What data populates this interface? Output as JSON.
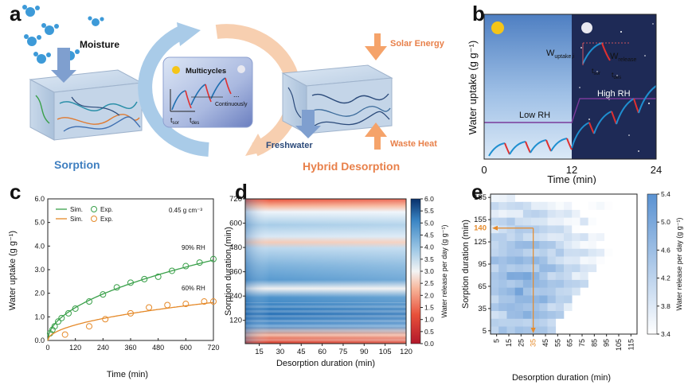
{
  "panels": {
    "a": "a",
    "b": "b",
    "c": "c",
    "d": "d",
    "e": "e"
  },
  "panel_a": {
    "moisture": "Moisture",
    "sorption": "Sorption",
    "hybrid_desorption": "Hybrid Desorption",
    "solar_energy": "Solar Energy",
    "waste_heat": "Waste Heat",
    "freshwater": "Freshwater",
    "multicycles": "Multicycles",
    "continuously": "Continuously",
    "ellipsis": "...",
    "t_sor": "t",
    "t_sor_sub": "sor",
    "t_des": "t",
    "t_des_sub": "des",
    "colors": {
      "sorption": "#3f7fc0",
      "desorption": "#f0955a",
      "arrow_blue": "#6fa8dc",
      "arrow_orange": "#f5b58a"
    }
  },
  "chart_data": [
    {
      "panel": "b",
      "type": "line",
      "title": "",
      "xlabel": "Time (min)",
      "ylabel": "Water uptake (g g⁻¹)",
      "x_ticks": [
        "0",
        "12",
        "24"
      ],
      "xlim": [
        0,
        24
      ],
      "annotations": {
        "low_rh": "Low RH",
        "high_rh": "High RH",
        "w_uptake": "W",
        "w_uptake_sub": "uptake,i",
        "w_release": "W",
        "w_release_sub": "release",
        "t_sor": "t",
        "t_sor_sub": "sor",
        "t_des": "t",
        "t_des_sub": "des"
      },
      "colors": {
        "day": "#4f7fc4",
        "night": "#1e2a56",
        "sorption": "#1f8fd0",
        "desorption": "#e03030",
        "rh_line": "#7a3a9a"
      }
    },
    {
      "panel": "c",
      "type": "scatter",
      "xlabel": "Time (min)",
      "ylabel": "Water uptake (g g⁻¹)",
      "x_ticks": [
        0,
        120,
        240,
        360,
        480,
        600,
        720
      ],
      "y_ticks": [
        "0.0",
        "1.0",
        "2.0",
        "3.0",
        "4.0",
        "5.0",
        "6.0"
      ],
      "xlim": [
        0,
        720
      ],
      "ylim": [
        0,
        6
      ],
      "legend": {
        "sim": "Sim.",
        "exp": "Exp.",
        "density": "0.45 g cm⁻³"
      },
      "series": [
        {
          "name": "90% RH",
          "color": "#3aa04a",
          "exp_x": [
            10,
            20,
            30,
            45,
            60,
            90,
            120,
            180,
            240,
            300,
            360,
            420,
            480,
            540,
            600,
            660,
            720
          ],
          "exp_y": [
            0.3,
            0.45,
            0.6,
            0.8,
            0.95,
            1.15,
            1.35,
            1.65,
            1.95,
            2.25,
            2.45,
            2.6,
            2.7,
            2.95,
            3.15,
            3.3,
            3.45
          ],
          "sim_k": 0.127,
          "sim_n": 0.5
        },
        {
          "name": "60% RH",
          "color": "#e58a2a",
          "exp_x": [
            75,
            180,
            250,
            360,
            440,
            520,
            600,
            680,
            720
          ],
          "exp_y": [
            0.25,
            0.6,
            0.9,
            1.15,
            1.4,
            1.5,
            1.55,
            1.65,
            1.65
          ],
          "sim_k": 0.06,
          "sim_n": 0.5
        }
      ],
      "series_labels": [
        "90% RH",
        "60% RH"
      ]
    },
    {
      "panel": "d",
      "type": "heatmap",
      "xlabel": "Desorption duration (min)",
      "ylabel": "Sorption duration (min)",
      "x_ticks": [
        "15",
        "30",
        "45",
        "60",
        "75",
        "90",
        "105",
        "120"
      ],
      "y_ticks": [
        "120",
        "240",
        "360",
        "480",
        "600",
        "720"
      ],
      "xlim": [
        5,
        120
      ],
      "ylim": [
        5,
        720
      ],
      "colorbar": {
        "label": "Water release per day (g g⁻¹)",
        "ticks": [
          "0.0",
          "0.5",
          "1.0",
          "1.5",
          "2.0",
          "2.5",
          "3.0",
          "3.5",
          "4.0",
          "4.5",
          "5.0",
          "5.5",
          "6.0"
        ],
        "range": [
          0,
          6
        ]
      }
    },
    {
      "panel": "e",
      "type": "heatmap",
      "xlabel": "Desorption duration (min)",
      "ylabel": "Sorption duration (min)",
      "x_ticks": [
        "5",
        "15",
        "25",
        "35",
        "45",
        "55",
        "65",
        "75",
        "85",
        "95",
        "105",
        "115"
      ],
      "y_ticks": [
        "5",
        "35",
        "65",
        "95",
        "125",
        "155",
        "185"
      ],
      "highlight": {
        "x_label": "35",
        "y_label": "140",
        "color": "#e58a2a"
      },
      "colorbar": {
        "label": "Water release per day (g g⁻¹)",
        "ticks": [
          "3.4",
          "3.8",
          "4.2",
          "4.6",
          "5.0",
          "5.4"
        ],
        "range": [
          3.4,
          5.4
        ]
      }
    }
  ]
}
